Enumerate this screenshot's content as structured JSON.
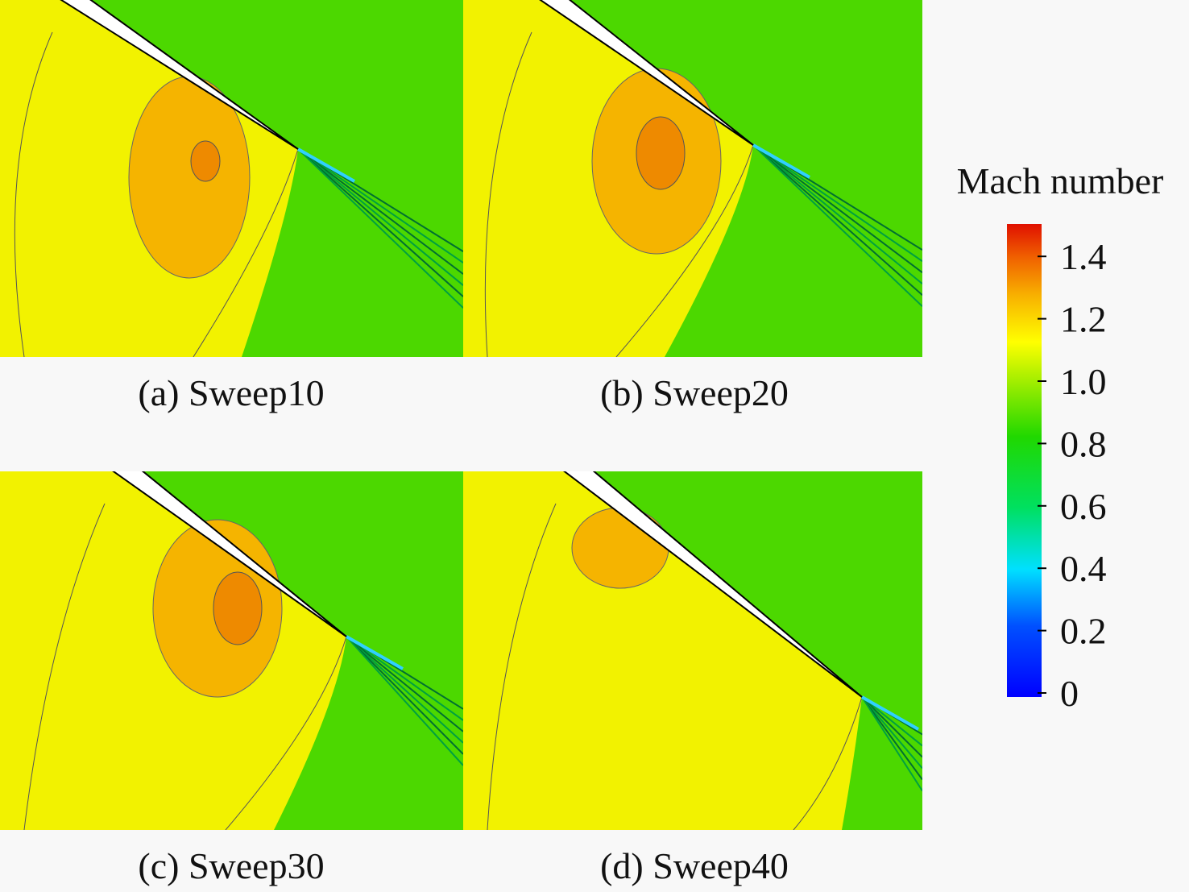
{
  "panels": [
    {
      "caption": "(a) Sweep10"
    },
    {
      "caption": "(b) Sweep20"
    },
    {
      "caption": "(c) Sweep30"
    },
    {
      "caption": "(d) Sweep40"
    }
  ],
  "colorbar": {
    "title": "Mach number",
    "ticks": [
      1.4,
      1.2,
      {
        "value": 1.0,
        "label": "1.0"
      },
      0.8,
      0.6,
      0.4,
      0.2,
      0
    ]
  }
}
